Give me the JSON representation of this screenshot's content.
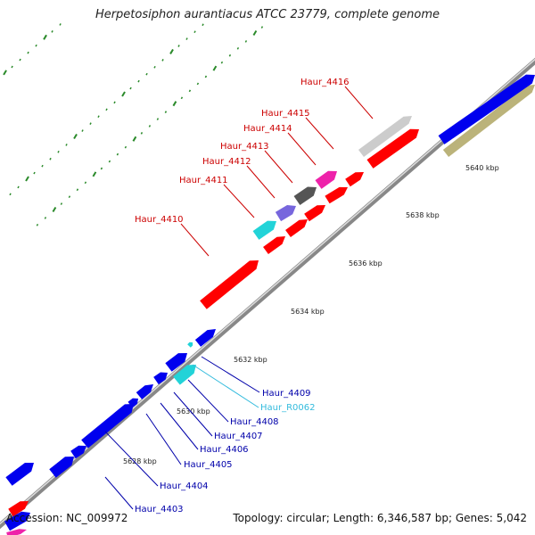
{
  "title": "Herpetosiphon aurantiacus ATCC 23779, complete genome",
  "footer": {
    "accession_label": "Accession:",
    "accession": "NC_009972",
    "topology_text": "Topology: circular; Length: 6,346,587 bp; Genes: 5,042"
  },
  "colors": {
    "red": "#ff0000",
    "blue": "#0000ee",
    "cyan": "#22d3d8",
    "magenta": "#ee22aa",
    "purple": "#7766dd",
    "gray": "#555555",
    "light_gray": "#cccccc",
    "khaki": "#bbb37a",
    "tick_green": "#2a8a2a",
    "label_red": "#cc0000",
    "label_blue": "#0000aa",
    "label_cyan": "#33bbdd",
    "backbone": "#888888"
  },
  "scale_ticks": [
    {
      "label": "5628 kbp"
    },
    {
      "label": "5630 kbp"
    },
    {
      "label": "5632 kbp"
    },
    {
      "label": "5634 kbp"
    },
    {
      "label": "5636 kbp"
    },
    {
      "label": "5638 kbp"
    },
    {
      "label": "5640 kbp"
    }
  ],
  "gene_labels": [
    {
      "text": "Haur_4416",
      "color": "label_red"
    },
    {
      "text": "Haur_4415",
      "color": "label_red"
    },
    {
      "text": "Haur_4414",
      "color": "label_red"
    },
    {
      "text": "Haur_4413",
      "color": "label_red"
    },
    {
      "text": "Haur_4412",
      "color": "label_red"
    },
    {
      "text": "Haur_4411",
      "color": "label_red"
    },
    {
      "text": "Haur_4410",
      "color": "label_red"
    },
    {
      "text": "Haur_4409",
      "color": "label_blue"
    },
    {
      "text": "Haur_R0062",
      "color": "label_cyan"
    },
    {
      "text": "Haur_4408",
      "color": "label_blue"
    },
    {
      "text": "Haur_4407",
      "color": "label_blue"
    },
    {
      "text": "Haur_4406",
      "color": "label_blue"
    },
    {
      "text": "Haur_4405",
      "color": "label_blue"
    },
    {
      "text": "Haur_4404",
      "color": "label_blue"
    },
    {
      "text": "Haur_4403",
      "color": "label_blue"
    }
  ],
  "features": [
    {
      "color": "khaki"
    },
    {
      "color": "blue"
    },
    {
      "color": "light_gray"
    },
    {
      "color": "red"
    },
    {
      "color": "red"
    },
    {
      "color": "magenta"
    },
    {
      "color": "red"
    },
    {
      "color": "gray"
    },
    {
      "color": "red"
    },
    {
      "color": "purple"
    },
    {
      "color": "red"
    },
    {
      "color": "cyan"
    },
    {
      "color": "red"
    },
    {
      "color": "red"
    },
    {
      "color": "blue"
    },
    {
      "color": "cyan"
    },
    {
      "color": "cyan"
    },
    {
      "color": "blue"
    },
    {
      "color": "blue"
    },
    {
      "color": "blue"
    },
    {
      "color": "blue"
    },
    {
      "color": "blue"
    },
    {
      "color": "blue"
    },
    {
      "color": "blue"
    },
    {
      "color": "blue"
    },
    {
      "color": "red"
    },
    {
      "color": "blue"
    },
    {
      "color": "magenta"
    }
  ]
}
